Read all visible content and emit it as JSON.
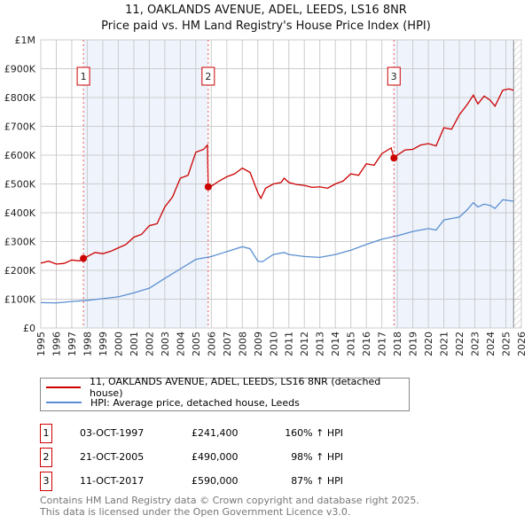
{
  "title": "11, OAKLANDS AVENUE, ADEL, LEEDS, LS16 8NR",
  "subtitle": "Price paid vs. HM Land Registry's House Price Index (HPI)",
  "colors": {
    "property": "#cc0000",
    "hpi": "#5b8fd1",
    "shade": "#eef3fc"
  },
  "chart_data": {
    "type": "line",
    "xlim": [
      1995,
      2026
    ],
    "ylim": [
      0,
      1000000
    ],
    "x_ticks": [
      "1995",
      "1996",
      "1997",
      "1998",
      "1999",
      "2000",
      "2001",
      "2002",
      "2003",
      "2004",
      "2005",
      "2006",
      "2007",
      "2008",
      "2009",
      "2010",
      "2011",
      "2012",
      "2013",
      "2014",
      "2015",
      "2016",
      "2017",
      "2018",
      "2019",
      "2020",
      "2021",
      "2022",
      "2023",
      "2024",
      "2025",
      "2026"
    ],
    "y_ticks": [
      {
        "v": 0,
        "l": "£0"
      },
      {
        "v": 100000,
        "l": "£100K"
      },
      {
        "v": 200000,
        "l": "£200K"
      },
      {
        "v": 300000,
        "l": "£300K"
      },
      {
        "v": 400000,
        "l": "£400K"
      },
      {
        "v": 500000,
        "l": "£500K"
      },
      {
        "v": 600000,
        "l": "£600K"
      },
      {
        "v": 700000,
        "l": "£700K"
      },
      {
        "v": 800000,
        "l": "£800K"
      },
      {
        "v": 900000,
        "l": "£900K"
      },
      {
        "v": 1000000,
        "l": "£1M"
      }
    ],
    "series": [
      {
        "name": "11, OAKLANDS AVENUE, ADEL, LEEDS, LS16 8NR (detached house)",
        "x": [
          1995,
          1995.5,
          1996,
          1996.5,
          1997,
          1997.5,
          1997.75,
          1998,
          1998.5,
          1999,
          1999.5,
          2000,
          2000.5,
          2001,
          2001.5,
          2002,
          2002.5,
          2003,
          2003.5,
          2004,
          2004.5,
          2005,
          2005.5,
          2005.75,
          2005.8,
          2006,
          2006.5,
          2007,
          2007.5,
          2008,
          2008.5,
          2009,
          2009.2,
          2009.5,
          2010,
          2010.5,
          2010.7,
          2011,
          2011.5,
          2012,
          2012.5,
          2013,
          2013.5,
          2014,
          2014.5,
          2015,
          2015.5,
          2016,
          2016.5,
          2017,
          2017.6,
          2017.78,
          2018,
          2018.5,
          2019,
          2019.5,
          2020,
          2020.5,
          2021,
          2021.5,
          2022,
          2022.5,
          2022.9,
          2023.2,
          2023.6,
          2024,
          2024.3,
          2024.8,
          2025.2,
          2025.5
        ],
        "y": [
          225000,
          232000,
          222000,
          224000,
          236000,
          233000,
          241400,
          248000,
          262000,
          258000,
          266000,
          278000,
          290000,
          315000,
          325000,
          355000,
          362000,
          420000,
          455000,
          520000,
          530000,
          610000,
          620000,
          635000,
          490000,
          492000,
          510000,
          525000,
          535000,
          555000,
          540000,
          470000,
          450000,
          485000,
          500000,
          505000,
          520000,
          505000,
          498000,
          495000,
          488000,
          490000,
          485000,
          500000,
          510000,
          535000,
          530000,
          570000,
          565000,
          605000,
          625000,
          590000,
          600000,
          618000,
          620000,
          635000,
          640000,
          632000,
          695000,
          690000,
          740000,
          775000,
          808000,
          778000,
          805000,
          790000,
          770000,
          825000,
          830000,
          825000
        ]
      },
      {
        "name": "HPI: Average price, detached house, Leeds",
        "x": [
          1995,
          1996,
          1997,
          1998,
          1999,
          2000,
          2001,
          2002,
          2003,
          2004,
          2005,
          2006,
          2007,
          2008,
          2008.5,
          2009,
          2009.3,
          2010,
          2010.7,
          2011,
          2012,
          2013,
          2014,
          2015,
          2016,
          2017,
          2018,
          2019,
          2020,
          2020.5,
          2021,
          2022,
          2022.5,
          2022.9,
          2023.2,
          2023.6,
          2024,
          2024.3,
          2024.8,
          2025.5
        ],
        "y": [
          88000,
          87000,
          92000,
          96000,
          102000,
          108000,
          122000,
          138000,
          172000,
          205000,
          238000,
          248000,
          265000,
          282000,
          275000,
          232000,
          230000,
          255000,
          262000,
          255000,
          248000,
          245000,
          255000,
          270000,
          290000,
          308000,
          320000,
          335000,
          345000,
          340000,
          375000,
          385000,
          410000,
          435000,
          420000,
          430000,
          425000,
          415000,
          445000,
          440000
        ]
      }
    ],
    "sales": [
      {
        "n": "1",
        "x": 1997.75,
        "y": 241400
      },
      {
        "n": "2",
        "x": 2005.8,
        "y": 490000
      },
      {
        "n": "3",
        "x": 2017.78,
        "y": 590000
      }
    ],
    "data_end": 2025.5
  },
  "legend": {
    "property": "11, OAKLANDS AVENUE, ADEL, LEEDS, LS16 8NR (detached house)",
    "hpi": "HPI: Average price, detached house, Leeds"
  },
  "transactions": [
    {
      "n": "1",
      "date": "03-OCT-1997",
      "price": "£241,400",
      "hpi": "160% ↑ HPI"
    },
    {
      "n": "2",
      "date": "21-OCT-2005",
      "price": "£490,000",
      "hpi": "98% ↑ HPI"
    },
    {
      "n": "3",
      "date": "11-OCT-2017",
      "price": "£590,000",
      "hpi": "87% ↑ HPI"
    }
  ],
  "footer": {
    "line1": "Contains HM Land Registry data © Crown copyright and database right 2025.",
    "line2": "This data is licensed under the Open Government Licence v3.0."
  }
}
